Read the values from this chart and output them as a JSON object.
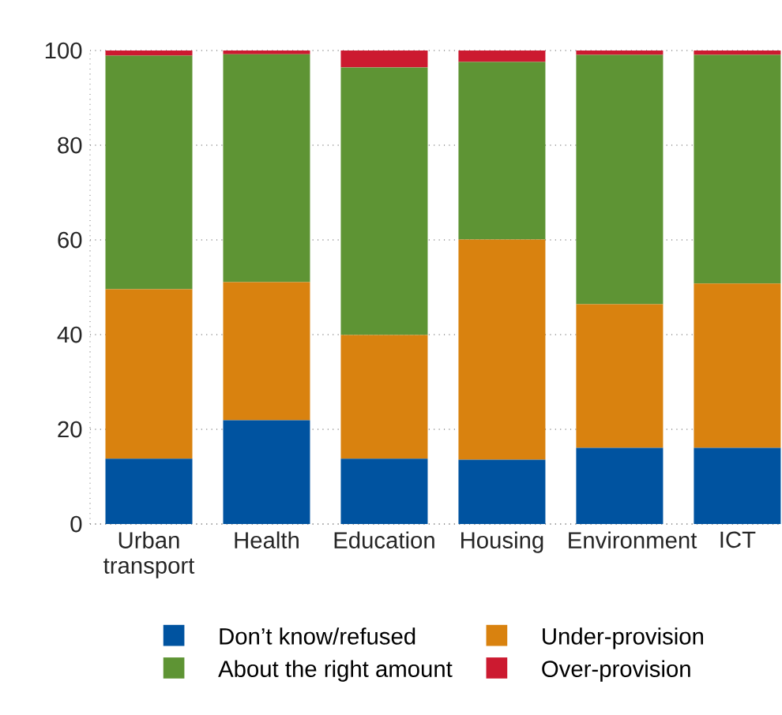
{
  "chart_data": {
    "type": "bar",
    "stacked": true,
    "categories": [
      "Urban transport",
      "Health",
      "Education",
      "Housing",
      "Environment",
      "ICT"
    ],
    "series": [
      {
        "name": "Don’t know/refused",
        "color": "#0053a0",
        "values": [
          13.8,
          21.9,
          13.8,
          13.6,
          16.1,
          16.1
        ]
      },
      {
        "name": "Under-provision",
        "color": "#d9820f",
        "values": [
          35.8,
          29.2,
          26.1,
          46.5,
          30.3,
          34.7
        ]
      },
      {
        "name": "About the right amount",
        "color": "#5e9434",
        "values": [
          49.3,
          48.1,
          56.5,
          37.5,
          52.7,
          48.3
        ]
      },
      {
        "name": "Over-provision",
        "color": "#cc1a30",
        "values": [
          1.1,
          0.8,
          3.6,
          2.4,
          0.9,
          0.9
        ]
      }
    ],
    "ylim": [
      0,
      100
    ],
    "yticks": [
      0,
      20,
      40,
      60,
      80,
      100
    ],
    "grid": "y",
    "legend": "bottom"
  }
}
